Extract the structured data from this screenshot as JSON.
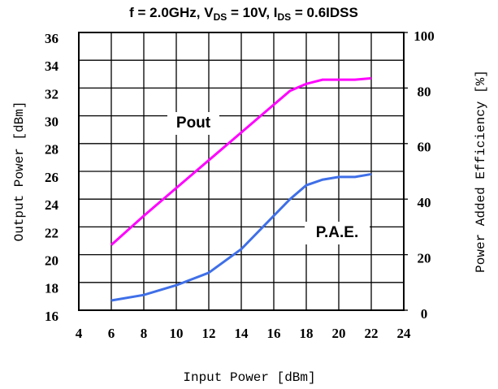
{
  "chart_data": {
    "type": "line",
    "title_parts": [
      "f = 2.0GHz, V",
      "DS",
      " = 10V, I",
      "DS",
      " = 0.6IDSS"
    ],
    "x_label": "Input Power [dBm]",
    "y_label": "Output Power [dBm]",
    "y2_label": "Power Added Efficiency [%]",
    "xlim": [
      4,
      24
    ],
    "xticks": [
      4,
      6,
      8,
      10,
      12,
      14,
      16,
      18,
      20,
      22,
      24
    ],
    "ylim": [
      16,
      36
    ],
    "yticks": [
      16,
      18,
      20,
      22,
      24,
      26,
      28,
      30,
      32,
      34,
      36
    ],
    "y2lim": [
      0,
      100
    ],
    "y2ticks": [
      0,
      20,
      40,
      60,
      80,
      100
    ],
    "grid": true,
    "x": [
      6,
      8,
      10,
      12,
      14,
      16,
      17,
      18,
      19,
      20,
      21,
      22
    ],
    "series": [
      {
        "name": "Pout",
        "color": "#ff00ff",
        "values": [
          20.7,
          22.8,
          24.8,
          26.8,
          28.8,
          30.8,
          31.8,
          32.3,
          32.6,
          32.6,
          32.6,
          32.7
        ]
      },
      {
        "name": "P.A.E.",
        "color": "#3f6fe8",
        "axis": "y2",
        "values": [
          3.5,
          5.5,
          9,
          13.5,
          22,
          34,
          40,
          45,
          47,
          48,
          48,
          49
        ]
      }
    ]
  }
}
